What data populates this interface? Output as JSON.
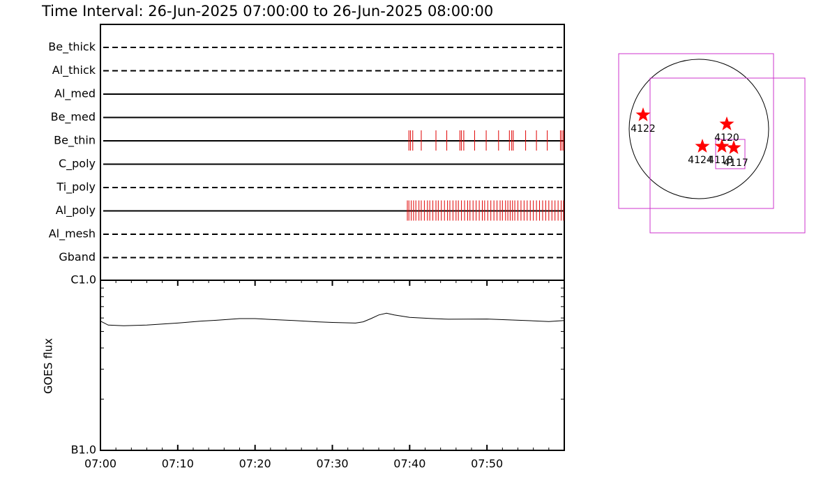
{
  "chart_data": [
    {
      "type": "timeline",
      "title": "Time Interval: 26-Jun-2025 07:00:00 to 26-Jun-2025 08:00:00",
      "xlim": [
        0,
        60
      ],
      "event_color": "#e00000",
      "rows": [
        {
          "name": "Be_thick",
          "line_style": "dashed",
          "events": []
        },
        {
          "name": "Al_thick",
          "line_style": "dashed",
          "events": []
        },
        {
          "name": "Al_med",
          "line_style": "solid",
          "events": []
        },
        {
          "name": "Be_med",
          "line_style": "solid",
          "events": []
        },
        {
          "name": "Be_thin",
          "line_style": "solid",
          "events": [
            39.9,
            40.1,
            40.4,
            41.5,
            43.4,
            44.8,
            46.5,
            46.7,
            47.0,
            48.4,
            49.9,
            51.5,
            52.9,
            53.2,
            53.4,
            55.0,
            56.4,
            57.8,
            59.5,
            59.7,
            59.9
          ]
        },
        {
          "name": "C_poly",
          "line_style": "solid",
          "events": []
        },
        {
          "name": "Ti_poly",
          "line_style": "dashed",
          "events": []
        },
        {
          "name": "Al_poly",
          "line_style": "solid",
          "events": [
            39.7,
            39.9,
            40.2,
            40.5,
            40.8,
            41.2,
            41.5,
            41.9,
            42.3,
            42.6,
            43.0,
            43.4,
            43.7,
            44.1,
            44.5,
            44.9,
            45.2,
            45.6,
            46.0,
            46.3,
            46.7,
            47.1,
            47.5,
            47.8,
            48.2,
            48.6,
            49.0,
            49.4,
            49.7,
            50.1,
            50.5,
            50.9,
            51.3,
            51.7,
            52.0,
            52.4,
            52.7,
            53.0,
            53.3,
            53.6,
            54.0,
            54.4,
            54.8,
            55.2,
            55.6,
            56.0,
            56.4,
            56.8,
            57.2,
            57.6,
            58.0,
            58.4,
            58.8,
            59.2,
            59.6,
            59.9
          ]
        },
        {
          "name": "Al_mesh",
          "line_style": "dashed",
          "events": []
        },
        {
          "name": "Gband",
          "line_style": "dashed",
          "events": []
        }
      ]
    },
    {
      "type": "line",
      "y_label": "GOES flux",
      "log_y": true,
      "xlim": [
        0,
        60
      ],
      "xticks": [
        {
          "value": 0,
          "label": "07:00"
        },
        {
          "value": 10,
          "label": "07:10"
        },
        {
          "value": 20,
          "label": "07:20"
        },
        {
          "value": 30,
          "label": "07:30"
        },
        {
          "value": 40,
          "label": "07:40"
        },
        {
          "value": 50,
          "label": "07:50"
        }
      ],
      "minor_xticks": [
        2,
        4,
        6,
        8,
        12,
        14,
        16,
        18,
        22,
        24,
        26,
        28,
        32,
        34,
        36,
        38,
        42,
        44,
        46,
        48,
        52,
        54,
        56,
        58
      ],
      "ylim": [
        1e-07,
        1e-06
      ],
      "yticks": [
        {
          "value": 1e-07,
          "label": "B1.0"
        },
        {
          "value": 1e-06,
          "label": "C1.0"
        }
      ],
      "minor_yticks": [
        2e-07,
        3e-07,
        4e-07,
        5e-07,
        6e-07,
        7e-07,
        8e-07,
        9e-07
      ],
      "x": [
        0,
        1,
        3,
        6,
        10,
        13,
        15,
        18,
        20,
        23,
        25,
        28,
        30,
        33,
        34,
        35,
        36,
        37,
        38,
        40,
        43,
        45,
        50,
        55,
        58,
        60
      ],
      "series": [
        {
          "color": "#000000",
          "values": [
            5.75e-07,
            5.45e-07,
            5.4e-07,
            5.45e-07,
            5.6e-07,
            5.75e-07,
            5.82e-07,
            5.95e-07,
            5.95e-07,
            5.85e-07,
            5.8e-07,
            5.7e-07,
            5.65e-07,
            5.6e-07,
            5.7e-07,
            5.95e-07,
            6.25e-07,
            6.4e-07,
            6.25e-07,
            6.05e-07,
            5.95e-07,
            5.9e-07,
            5.92e-07,
            5.8e-07,
            5.72e-07,
            5.8e-07
          ]
        }
      ]
    },
    {
      "type": "map",
      "star_color": "#ff0000",
      "box_color": "#cc33cc",
      "regions": [
        {
          "label": "4122"
        },
        {
          "label": "4120"
        },
        {
          "label": "4124"
        },
        {
          "label": "4118"
        },
        {
          "label": "4117"
        }
      ]
    }
  ]
}
